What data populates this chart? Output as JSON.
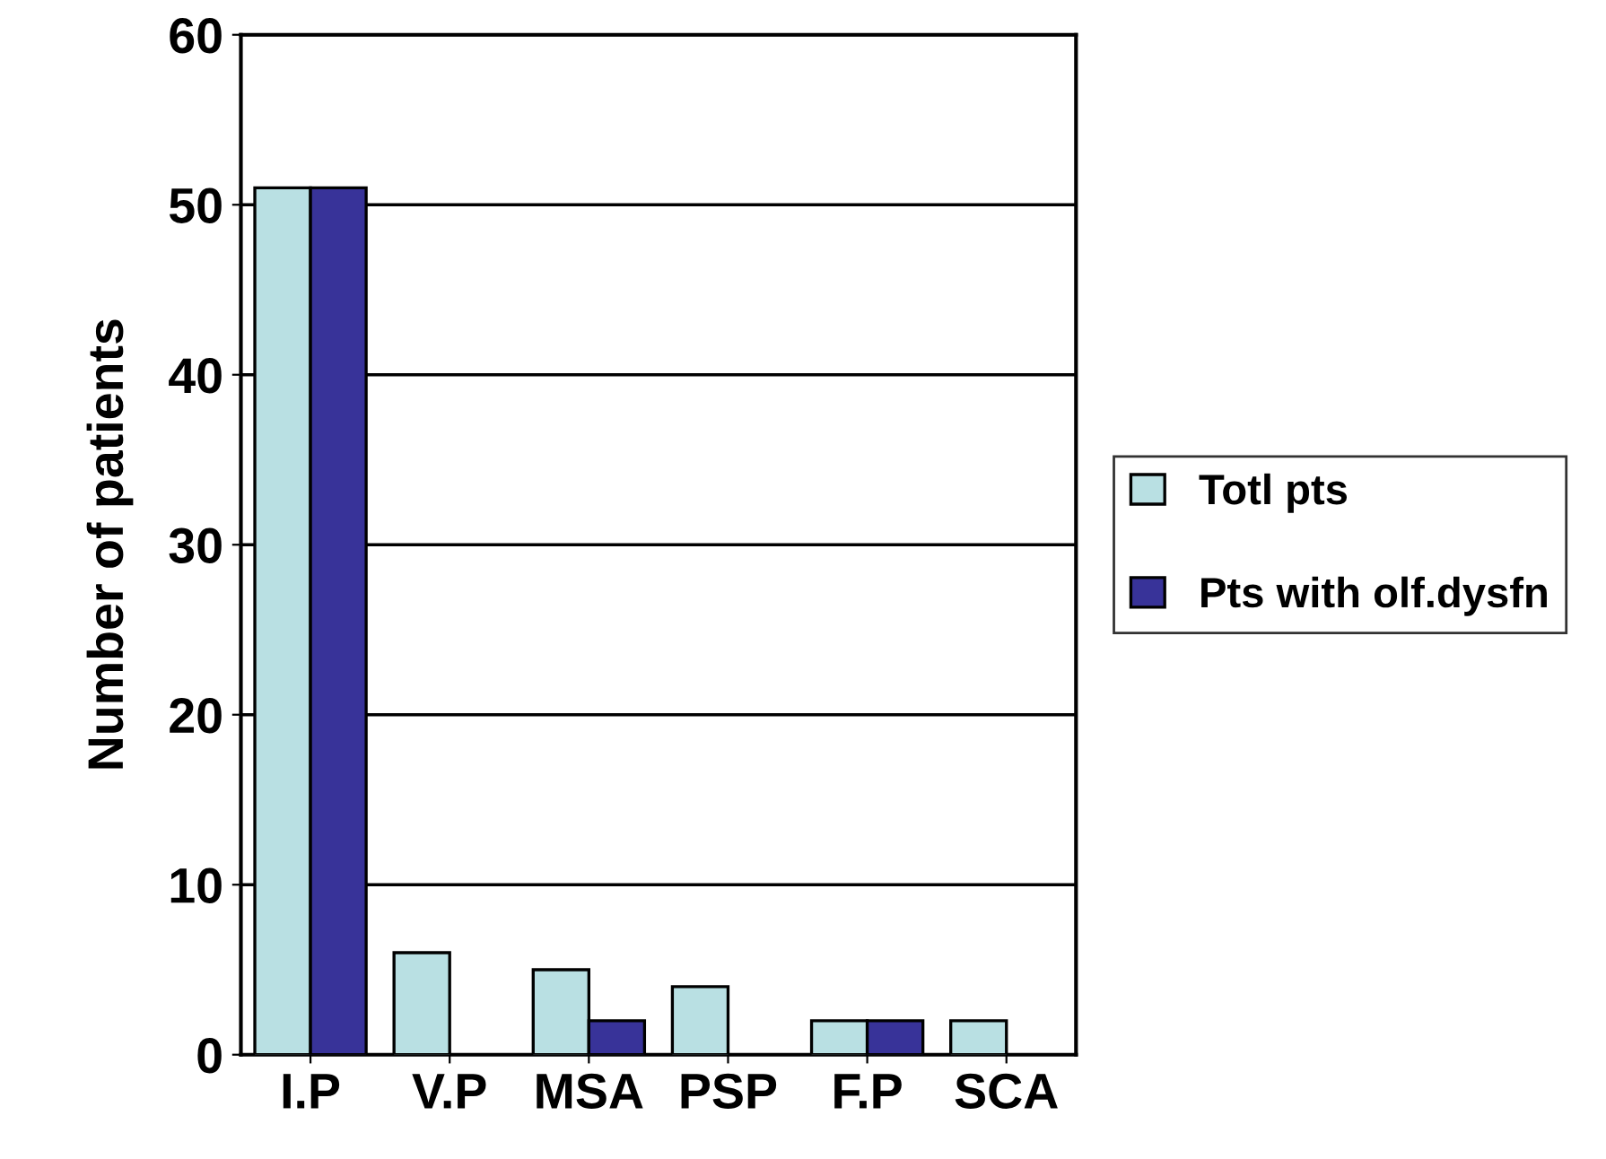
{
  "chart_data": {
    "type": "bar",
    "ylabel": "Number of patients",
    "categories": [
      "I.P",
      "V.P",
      "MSA",
      "PSP",
      "F.P",
      "SCA"
    ],
    "series": [
      {
        "name": "Totl pts",
        "color": "#b9e0e3",
        "values": [
          51,
          6,
          5,
          4,
          2,
          2
        ]
      },
      {
        "name": "Pts with olf.dysfn",
        "color": "#383399",
        "values": [
          51,
          0,
          2,
          0,
          2,
          0
        ]
      }
    ],
    "ylim": [
      0,
      60
    ],
    "yticks": [
      0,
      10,
      20,
      30,
      40,
      50,
      60
    ],
    "grid": "y",
    "legend": "right"
  }
}
